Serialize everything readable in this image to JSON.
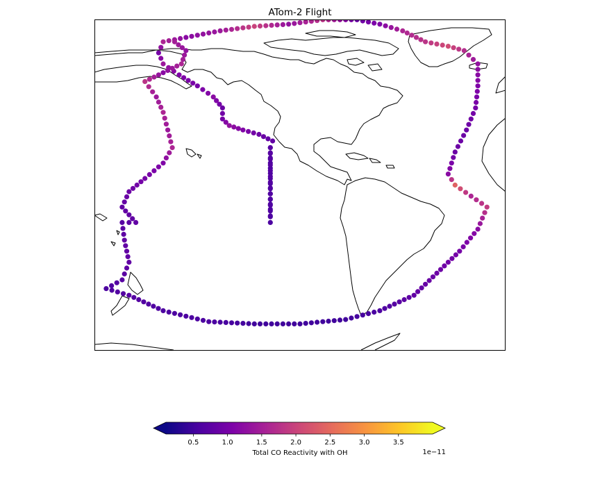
{
  "figure": {
    "title": "ATom-2 Flight"
  },
  "colorbar": {
    "label": "Total CO Reactivity with OH",
    "offset_text": "1e−11",
    "ticks": [
      {
        "value": 0.5,
        "label": "0.5"
      },
      {
        "value": 1.0,
        "label": "1.0"
      },
      {
        "value": 1.5,
        "label": "1.5"
      },
      {
        "value": 2.0,
        "label": "2.0"
      },
      {
        "value": 2.5,
        "label": "2.5"
      },
      {
        "value": 3.0,
        "label": "3.0"
      },
      {
        "value": 3.5,
        "label": "3.5"
      }
    ],
    "range": [
      0.1,
      4.0
    ],
    "extend": "both",
    "colormap": "plasma"
  },
  "chart_data": {
    "type": "scatter",
    "title": "ATom-2 Flight",
    "colorbar_label": "Total CO Reactivity with OH",
    "color_scale_exponent": "1e−11",
    "colormap": "plasma",
    "map_extent": {
      "lon": [
        -180,
        0
      ],
      "lat": [
        -70,
        80
      ]
    },
    "flight_track": [
      {
        "lon": -103,
        "lat": 22,
        "v": 0.7
      },
      {
        "lon": -103,
        "lat": 15,
        "v": 0.6
      },
      {
        "lon": -103,
        "lat": 8,
        "v": 0.6
      },
      {
        "lon": -103,
        "lat": 1,
        "v": 0.6
      },
      {
        "lon": -103,
        "lat": -6,
        "v": 0.6
      },
      {
        "lon": -103,
        "lat": -12,
        "v": 0.6
      },
      {
        "lon": -103,
        "lat": 22,
        "v": 0.7
      },
      {
        "lon": -102,
        "lat": 25,
        "v": 0.8
      },
      {
        "lon": -108,
        "lat": 28,
        "v": 0.9
      },
      {
        "lon": -115,
        "lat": 30,
        "v": 1.1
      },
      {
        "lon": -121,
        "lat": 32,
        "v": 1.3
      },
      {
        "lon": -124,
        "lat": 35,
        "v": 1.0
      },
      {
        "lon": -124,
        "lat": 40,
        "v": 0.9
      },
      {
        "lon": -128,
        "lat": 45,
        "v": 1.2
      },
      {
        "lon": -135,
        "lat": 50,
        "v": 1.0
      },
      {
        "lon": -143,
        "lat": 55,
        "v": 1.1
      },
      {
        "lon": -150,
        "lat": 60,
        "v": 1.4
      },
      {
        "lon": -152,
        "lat": 65,
        "v": 1.0
      },
      {
        "lon": -150,
        "lat": 70,
        "v": 1.6
      },
      {
        "lon": -140,
        "lat": 72,
        "v": 1.2
      },
      {
        "lon": -125,
        "lat": 75,
        "v": 1.4
      },
      {
        "lon": -110,
        "lat": 77,
        "v": 2.0
      },
      {
        "lon": -95,
        "lat": 78,
        "v": 1.3
      },
      {
        "lon": -80,
        "lat": 80,
        "v": 1.8
      },
      {
        "lon": -65,
        "lat": 80,
        "v": 0.9
      },
      {
        "lon": -55,
        "lat": 78,
        "v": 1.1
      },
      {
        "lon": -45,
        "lat": 75,
        "v": 1.6
      },
      {
        "lon": -35,
        "lat": 70,
        "v": 1.8
      },
      {
        "lon": -25,
        "lat": 68,
        "v": 2.1
      },
      {
        "lon": -18,
        "lat": 66,
        "v": 1.7
      },
      {
        "lon": -12,
        "lat": 60,
        "v": 1.3
      },
      {
        "lon": -12,
        "lat": 50,
        "v": 1.1
      },
      {
        "lon": -13,
        "lat": 40,
        "v": 1.0
      },
      {
        "lon": -17,
        "lat": 30,
        "v": 0.9
      },
      {
        "lon": -22,
        "lat": 20,
        "v": 0.9
      },
      {
        "lon": -25,
        "lat": 10,
        "v": 1.2
      },
      {
        "lon": -22,
        "lat": 5,
        "v": 2.4
      },
      {
        "lon": -15,
        "lat": 0,
        "v": 1.6
      },
      {
        "lon": -8,
        "lat": -5,
        "v": 1.9
      },
      {
        "lon": -12,
        "lat": -15,
        "v": 1.2
      },
      {
        "lon": -20,
        "lat": -25,
        "v": 1.0
      },
      {
        "lon": -30,
        "lat": -35,
        "v": 0.9
      },
      {
        "lon": -40,
        "lat": -45,
        "v": 0.8
      },
      {
        "lon": -55,
        "lat": -52,
        "v": 0.6
      },
      {
        "lon": -70,
        "lat": -56,
        "v": 0.5
      },
      {
        "lon": -90,
        "lat": -58,
        "v": 0.5
      },
      {
        "lon": -110,
        "lat": -58,
        "v": 0.5
      },
      {
        "lon": -130,
        "lat": -57,
        "v": 0.6
      },
      {
        "lon": -150,
        "lat": -52,
        "v": 0.6
      },
      {
        "lon": -165,
        "lat": -45,
        "v": 0.7
      },
      {
        "lon": -175,
        "lat": -42,
        "v": 0.6
      },
      {
        "lon": -168,
        "lat": -38,
        "v": 0.7
      },
      {
        "lon": -165,
        "lat": -30,
        "v": 0.8
      },
      {
        "lon": -167,
        "lat": -20,
        "v": 0.8
      },
      {
        "lon": -168,
        "lat": -12,
        "v": 0.7
      },
      {
        "lon": -162,
        "lat": -12,
        "v": 0.8
      },
      {
        "lon": -168,
        "lat": -5,
        "v": 0.8
      },
      {
        "lon": -165,
        "lat": 2,
        "v": 0.9
      },
      {
        "lon": -158,
        "lat": 8,
        "v": 1.0
      },
      {
        "lon": -150,
        "lat": 15,
        "v": 1.1
      },
      {
        "lon": -146,
        "lat": 22,
        "v": 1.6
      },
      {
        "lon": -148,
        "lat": 30,
        "v": 1.4
      },
      {
        "lon": -150,
        "lat": 38,
        "v": 1.6
      },
      {
        "lon": -153,
        "lat": 45,
        "v": 1.4
      },
      {
        "lon": -158,
        "lat": 52,
        "v": 1.8
      },
      {
        "lon": -150,
        "lat": 56,
        "v": 1.2
      },
      {
        "lon": -142,
        "lat": 60,
        "v": 1.6
      },
      {
        "lon": -140,
        "lat": 66,
        "v": 1.3
      },
      {
        "lon": -145,
        "lat": 70,
        "v": 1.5
      }
    ]
  }
}
